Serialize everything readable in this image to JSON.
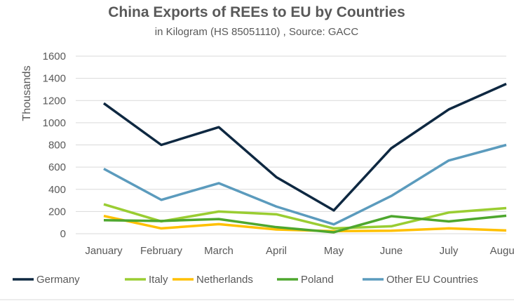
{
  "chart_data": {
    "type": "line",
    "title": "China Exports of REEs to EU by Countries",
    "subtitle": "in Kilogram (HS 85051110) , Source: GACC",
    "ylabel": "Thousands",
    "xlabel": "",
    "ylim": [
      0,
      1600
    ],
    "yticks": [
      0,
      200,
      400,
      600,
      800,
      1000,
      1200,
      1400,
      1600
    ],
    "grid": true,
    "legend": "bottom",
    "categories": [
      "January",
      "February",
      "March",
      "April",
      "May",
      "June",
      "July",
      "August"
    ],
    "series": [
      {
        "name": "Germany",
        "color": "#0e2841",
        "values": [
          1175,
          800,
          960,
          510,
          210,
          770,
          1120,
          1350
        ]
      },
      {
        "name": "Italy",
        "color": "#9acd32",
        "values": [
          265,
          111,
          200,
          175,
          48,
          67,
          191,
          231
        ]
      },
      {
        "name": "Netherlands",
        "color": "#ffc000",
        "values": [
          160,
          48,
          86,
          38,
          23,
          27,
          48,
          29
        ]
      },
      {
        "name": "Poland",
        "color": "#4ea72e",
        "values": [
          122,
          115,
          132,
          59,
          13,
          158,
          111,
          162
        ]
      },
      {
        "name": "Other EU Countries",
        "color": "#5b9bbd",
        "values": [
          585,
          305,
          455,
          245,
          84,
          340,
          660,
          800
        ]
      }
    ]
  }
}
